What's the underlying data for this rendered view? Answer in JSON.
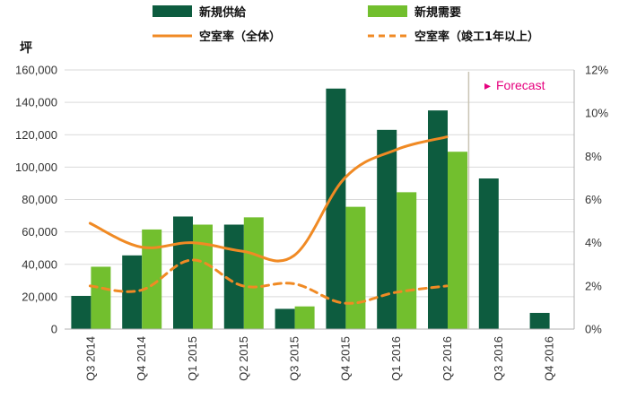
{
  "chart_data": {
    "type": "bar",
    "y_unit_label": "坪",
    "categories": [
      "Q3 2014",
      "Q4 2014",
      "Q1 2015",
      "Q2 2015",
      "Q3 2015",
      "Q4 2015",
      "Q1 2016",
      "Q2 2016",
      "Q3 2016",
      "Q4 2016"
    ],
    "series": [
      {
        "name": "新規供給",
        "type": "bar",
        "axis": "left",
        "color": "#0d5c3f",
        "values": [
          20500,
          45500,
          69500,
          64500,
          12500,
          148500,
          123000,
          135000,
          93000,
          10000
        ]
      },
      {
        "name": "新規需要",
        "type": "bar",
        "axis": "left",
        "color": "#72bf2e",
        "values": [
          38500,
          61500,
          64500,
          69000,
          14000,
          75500,
          84500,
          109500,
          null,
          null
        ]
      },
      {
        "name": "空室率（全体）",
        "type": "line",
        "axis": "right",
        "style": "solid",
        "color": "#f08a24",
        "values": [
          4.9,
          3.8,
          4.0,
          3.6,
          3.4,
          7.0,
          8.3,
          8.9,
          null,
          null
        ]
      },
      {
        "name": "空室率（竣工1年以上）",
        "type": "line",
        "axis": "right",
        "style": "dashed",
        "color": "#f08a24",
        "values": [
          2.0,
          1.8,
          3.2,
          2.0,
          2.1,
          1.2,
          1.7,
          2.0,
          null,
          null
        ]
      }
    ],
    "y_left": {
      "min": 0,
      "max": 160000,
      "step": 20000,
      "ticks": [
        "0",
        "20,000",
        "40,000",
        "60,000",
        "80,000",
        "100,000",
        "120,000",
        "140,000",
        "160,000"
      ]
    },
    "y_right": {
      "min": 0,
      "max": 12,
      "step": 2,
      "ticks": [
        "0%",
        "2%",
        "4%",
        "6%",
        "8%",
        "10%",
        "12%"
      ]
    },
    "forecast_label": "Forecast",
    "forecast_marker": "▸",
    "forecast_color": "#e6007e",
    "forecast_start_index": 8,
    "legend_position": "top",
    "grid": "horizontal"
  }
}
